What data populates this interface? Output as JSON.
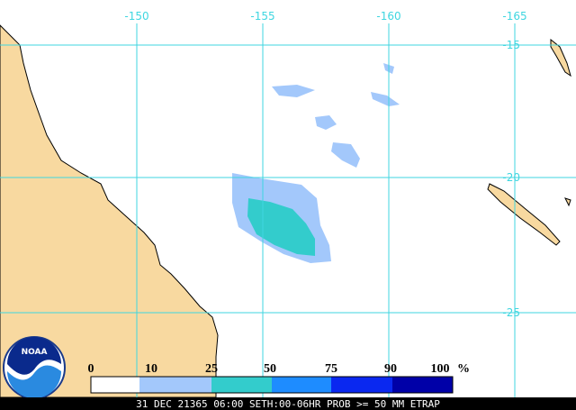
{
  "map": {
    "longitude_labels": [
      "-150",
      "-155",
      "-160",
      "-165"
    ],
    "latitude_labels": [
      "-15",
      "-20",
      "-25"
    ],
    "logo": "NOAA",
    "legend": {
      "labels": [
        0,
        10,
        25,
        50,
        75,
        90,
        100
      ],
      "unit": "%",
      "colors": [
        "#ffffff",
        "#a3c8fb",
        "#33cccc",
        "#1e8cff",
        "#0a28f0",
        "#0000a8"
      ]
    },
    "footer": "31 DEC 21365 06:00 SETH:00-06HR PROB >= 50 MM ETRAP"
  }
}
